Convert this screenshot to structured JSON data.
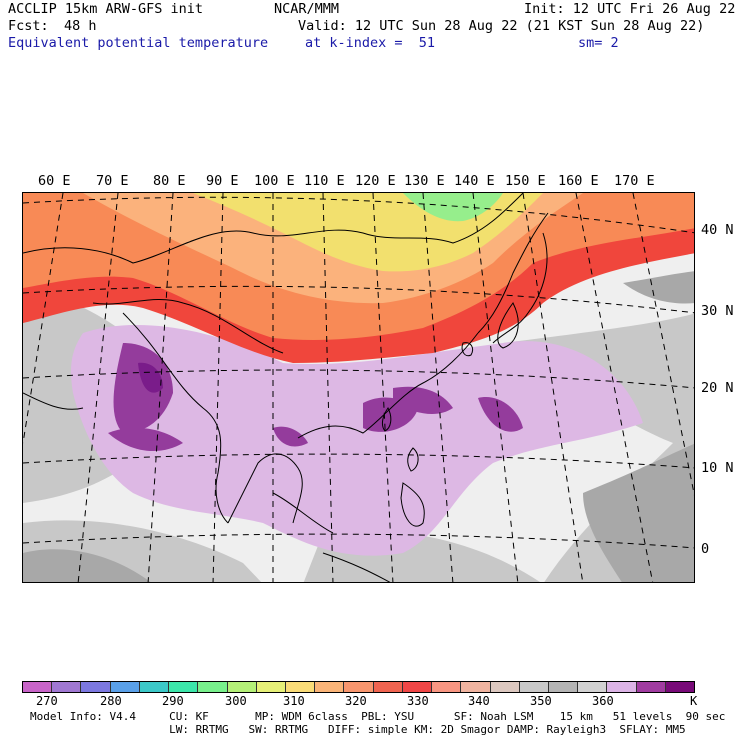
{
  "header": {
    "model": "ACCLIP 15km ARW-GFS init",
    "center": "NCAR/MMM",
    "init": "Init: 12 UTC Fri 26 Aug 22",
    "fcst_label": "Fcst:",
    "fcst_value": "48 h",
    "valid": "Valid: 12 UTC Sun 28 Aug 22 (21 KST Sun 28 Aug 22)",
    "field": "Equivalent potential temperature",
    "level": "at k-index =  51",
    "smoothing": "sm= 2"
  },
  "map": {
    "lon_labels": [
      "60 E",
      "70 E",
      "80 E",
      "90 E",
      "100 E",
      "110 E",
      "120 E",
      "130 E",
      "140 E",
      "150 E",
      "160 E",
      "170 E"
    ],
    "lat_labels": [
      "40 N",
      "30 N",
      "20 N",
      "10 N",
      "0"
    ],
    "colors": {
      "ocean_light": "#efefef",
      "gray_mid": "#c8c8c8",
      "gray_dark": "#a8a8a8",
      "lavender": "#ddb8e4",
      "purple": "#943c9c",
      "dark_purple": "#7a1c8a",
      "red": "#f0463c",
      "orange": "#f88a56",
      "light_orange": "#fbb27c",
      "yellow": "#f2e06e",
      "green": "#96ee8c",
      "coast": "#000000"
    }
  },
  "colorbar": {
    "unit": "K",
    "tick_labels": [
      "270",
      "280",
      "290",
      "300",
      "310",
      "320",
      "330",
      "340",
      "350",
      "360"
    ],
    "colors": [
      "#c864c8",
      "#a078d2",
      "#7c78e0",
      "#5aa0e8",
      "#3cc8c8",
      "#3ce6aa",
      "#78f08c",
      "#b4f078",
      "#e6f078",
      "#fadc78",
      "#fab478",
      "#f8966e",
      "#f06450",
      "#f04646",
      "#f89682",
      "#f0b4a0",
      "#dcc8c0",
      "#c8c8c8",
      "#b4b4b4",
      "#d2d2d2",
      "#dcb4e6",
      "#a03ca0",
      "#780a78"
    ]
  },
  "footer": {
    "line1": "Model Info: V4.4     CU: KF       MP: WDM 6class  PBL: YSU      SF: Noah LSM    15 km   51 levels  90 sec",
    "line2": "                     LW: RRTMG   SW: RRTMG   DIFF: simple KM: 2D Smagor DAMP: Rayleigh3  SFLAY: MM5"
  }
}
